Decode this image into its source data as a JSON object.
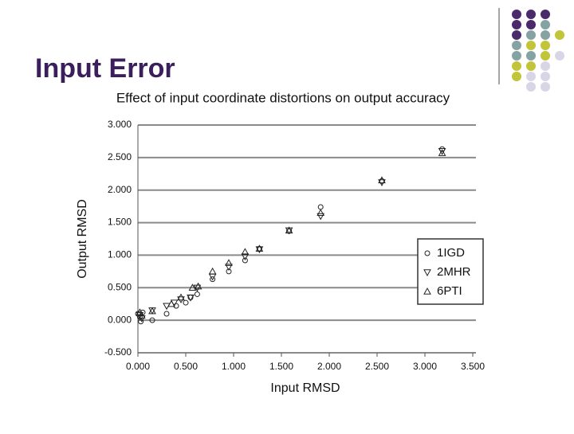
{
  "slide": {
    "title": "Input Error"
  },
  "chart_data": {
    "type": "scatter",
    "title": "Effect of input coordinate distortions on output accuracy",
    "x_label": "Input RMSD",
    "y_label": "Output RMSD",
    "xlim": [
      0,
      3.5
    ],
    "xticks": [
      {
        "value": 0,
        "label": "0.000"
      },
      {
        "value": 0.5,
        "label": "0.500"
      },
      {
        "value": 1,
        "label": "1.000"
      },
      {
        "value": 1.5,
        "label": "1.500"
      },
      {
        "value": 2,
        "label": "2.000"
      },
      {
        "value": 2.5,
        "label": "2.500"
      },
      {
        "value": 3,
        "label": "3.000"
      },
      {
        "value": 3.5,
        "label": "3.500"
      }
    ],
    "ylim": [
      -0.5,
      3
    ],
    "yticks": [
      {
        "value": -0.5,
        "label": "-0.500"
      },
      {
        "value": 0,
        "label": "0.000"
      },
      {
        "value": 0.5,
        "label": "0.500"
      },
      {
        "value": 1,
        "label": "1.000"
      },
      {
        "value": 1.5,
        "label": "1.500"
      },
      {
        "value": 2,
        "label": "2.000"
      },
      {
        "value": 2.5,
        "label": "2.500"
      },
      {
        "value": 3,
        "label": "3.000"
      }
    ],
    "grid": true,
    "legend": "right",
    "series": [
      {
        "name": "1IGD",
        "color": "#222222",
        "marker": "circle",
        "x": [
          0,
          0.02,
          0.03,
          0.05,
          0.15,
          0.3,
          0.4,
          0.5,
          0.55,
          0.62,
          0.78,
          0.95,
          1.12,
          1.27,
          1.58,
          1.91,
          2.55,
          3.18
        ],
        "values": [
          0.1,
          0.05,
          -0.02,
          0.12,
          0.0,
          0.1,
          0.22,
          0.27,
          0.35,
          0.4,
          0.63,
          0.75,
          0.92,
          1.1,
          1.37,
          1.74,
          2.14,
          2.63
        ]
      },
      {
        "name": "2MHR",
        "color": "#222222",
        "marker": "triangle-down",
        "x": [
          0.02,
          0.04,
          0.15,
          0.3,
          0.38,
          0.45,
          0.55,
          0.62,
          0.78,
          0.95,
          1.12,
          1.27,
          1.58,
          1.91,
          2.55,
          3.18
        ],
        "values": [
          0.08,
          0.03,
          0.15,
          0.22,
          0.27,
          0.32,
          0.35,
          0.5,
          0.67,
          0.82,
          0.98,
          1.09,
          1.38,
          1.6,
          2.12,
          2.6
        ]
      },
      {
        "name": "6PTI",
        "color": "#222222",
        "marker": "triangle-up",
        "x": [
          0.02,
          0.04,
          0.15,
          0.35,
          0.45,
          0.57,
          0.63,
          0.78,
          0.95,
          1.12,
          1.27,
          1.58,
          1.91,
          2.55,
          3.18
        ],
        "values": [
          0.12,
          0.07,
          0.14,
          0.25,
          0.35,
          0.5,
          0.52,
          0.75,
          0.88,
          1.05,
          1.1,
          1.38,
          1.65,
          2.15,
          2.57
        ]
      }
    ]
  }
}
